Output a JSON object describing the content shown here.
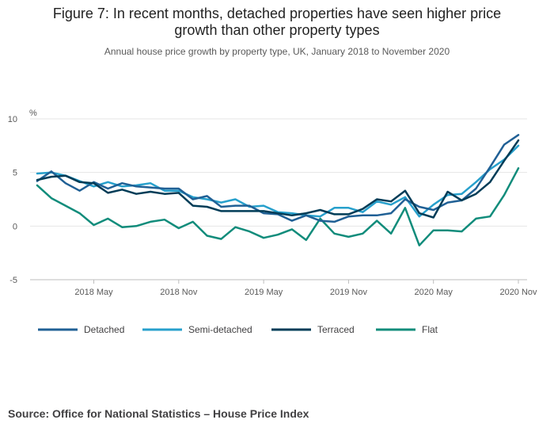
{
  "figure": {
    "title_line1": "Figure 7: In recent months, detached properties have seen higher price",
    "title_line2": "growth than other property types",
    "subtitle": "Annual house price growth by property type, UK, January 2018 to November 2020",
    "source": "Source: Office for National Statistics – House Price Index"
  },
  "chart_data": {
    "type": "line",
    "title": "Figure 7: In recent months, detached properties have seen higher price growth than other property types",
    "subtitle": "Annual house price growth by property type, UK, January 2018 to November 2020",
    "ylabel": "%",
    "xlabel": "",
    "ylim": [
      -5,
      10
    ],
    "yticks": [
      -5,
      0,
      5,
      10
    ],
    "grid": true,
    "legend_position": "bottom",
    "x": [
      "Jan 2018",
      "Feb 2018",
      "Mar 2018",
      "Apr 2018",
      "May 2018",
      "Jun 2018",
      "Jul 2018",
      "Aug 2018",
      "Sep 2018",
      "Oct 2018",
      "Nov 2018",
      "Dec 2018",
      "Jan 2019",
      "Feb 2019",
      "Mar 2019",
      "Apr 2019",
      "May 2019",
      "Jun 2019",
      "Jul 2019",
      "Aug 2019",
      "Sep 2019",
      "Oct 2019",
      "Nov 2019",
      "Dec 2019",
      "Jan 2020",
      "Feb 2020",
      "Mar 2020",
      "Apr 2020",
      "May 2020",
      "Jun 2020",
      "Jul 2020",
      "Aug 2020",
      "Sep 2020",
      "Oct 2020",
      "Nov 2020"
    ],
    "xticks": [
      {
        "index": 4,
        "label": "2018 May"
      },
      {
        "index": 10,
        "label": "2018 Nov"
      },
      {
        "index": 16,
        "label": "2019 May"
      },
      {
        "index": 22,
        "label": "2019 Nov"
      },
      {
        "index": 28,
        "label": "2020 May"
      },
      {
        "index": 34,
        "label": "2020 Nov"
      }
    ],
    "series": [
      {
        "name": "Detached",
        "color": "#206095",
        "values": [
          4.2,
          5.1,
          4.0,
          3.3,
          4.1,
          3.5,
          4.0,
          3.7,
          3.6,
          3.5,
          3.5,
          2.5,
          2.8,
          1.8,
          1.9,
          1.9,
          1.2,
          1.1,
          0.5,
          1.0,
          0.5,
          0.4,
          0.9,
          1.0,
          1.0,
          1.2,
          2.5,
          1.8,
          1.5,
          2.2,
          2.4,
          3.5,
          5.5,
          7.6,
          8.5
        ]
      },
      {
        "name": "Semi-detached",
        "color": "#27a0cc",
        "values": [
          4.9,
          5.0,
          4.7,
          4.2,
          3.7,
          4.1,
          3.7,
          3.8,
          4.0,
          3.3,
          3.3,
          2.7,
          2.5,
          2.2,
          2.5,
          1.8,
          1.9,
          1.3,
          1.2,
          1.0,
          0.9,
          1.7,
          1.7,
          1.3,
          2.3,
          2.0,
          2.7,
          0.9,
          2.0,
          2.9,
          3.0,
          4.1,
          5.3,
          6.2,
          7.5
        ]
      },
      {
        "name": "Terraced",
        "color": "#003c57",
        "values": [
          4.3,
          4.6,
          4.7,
          4.1,
          4.0,
          3.1,
          3.4,
          3.0,
          3.2,
          3.0,
          3.1,
          1.9,
          1.8,
          1.4,
          1.4,
          1.4,
          1.4,
          1.2,
          1.0,
          1.2,
          1.5,
          1.1,
          1.1,
          1.6,
          2.5,
          2.3,
          3.3,
          1.2,
          0.8,
          3.2,
          2.4,
          3.0,
          4.1,
          6.1,
          8.0
        ]
      },
      {
        "name": "Flat",
        "color": "#118c7b",
        "values": [
          3.8,
          2.6,
          1.9,
          1.2,
          0.1,
          0.7,
          -0.1,
          0.0,
          0.4,
          0.6,
          -0.2,
          0.4,
          -0.9,
          -1.2,
          -0.1,
          -0.5,
          -1.1,
          -0.8,
          -0.3,
          -1.3,
          0.7,
          -0.7,
          -1.0,
          -0.7,
          0.5,
          -0.7,
          1.7,
          -1.8,
          -0.4,
          -0.4,
          -0.5,
          0.7,
          0.9,
          2.9,
          5.4
        ]
      }
    ]
  }
}
